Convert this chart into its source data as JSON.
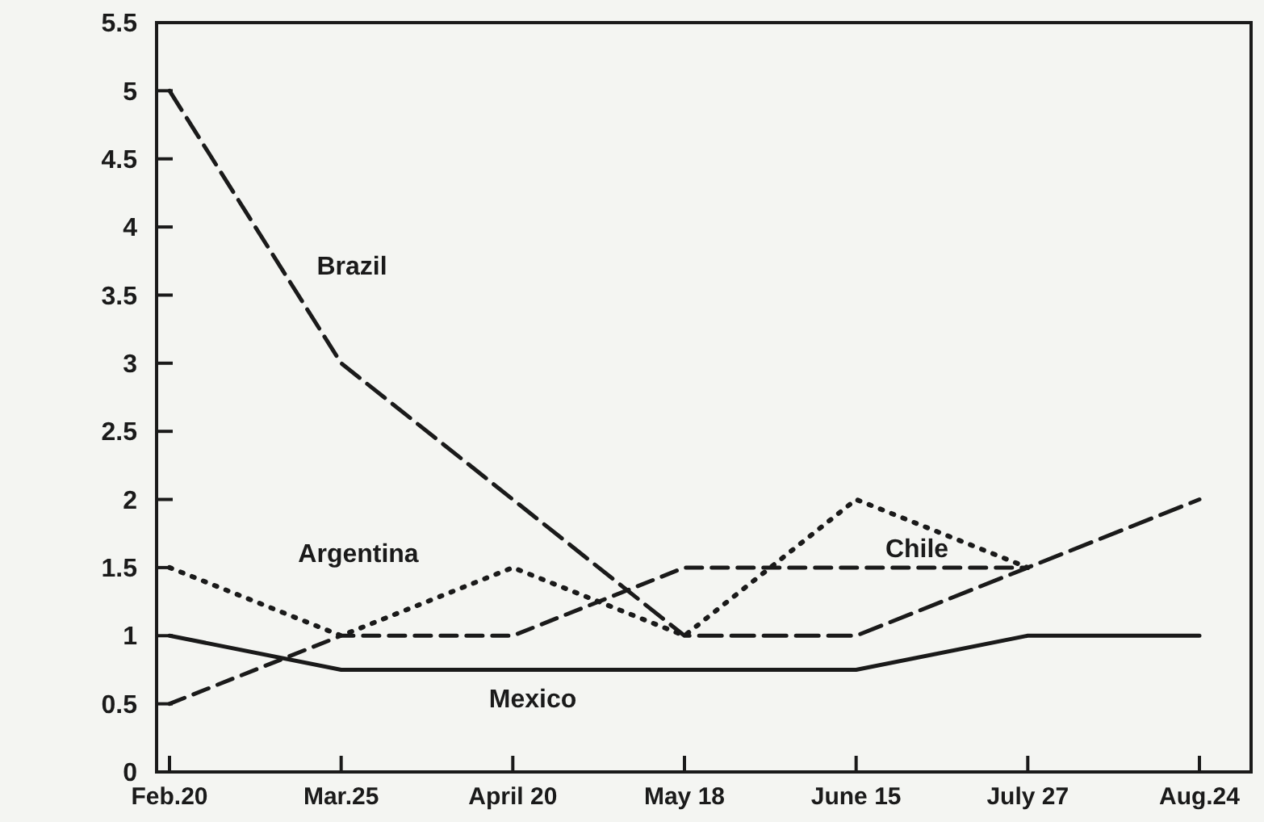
{
  "chart_data": {
    "type": "line",
    "categories": [
      "Feb.20",
      "Mar.25",
      "April 20",
      "May 18",
      "June 15",
      "July 27",
      "Aug.24"
    ],
    "series": [
      {
        "name": "Brazil",
        "color": "#1a1a1a",
        "line_style": "dashed",
        "values": [
          5,
          3,
          2,
          1,
          1,
          1.5,
          2
        ]
      },
      {
        "name": "Argentina",
        "color": "#1a1a1a",
        "line_style": "dotted",
        "values": [
          1.5,
          1,
          1.5,
          1,
          2,
          1.5,
          null
        ]
      },
      {
        "name": "Chile",
        "color": "#1a1a1a",
        "line_style": "dashed",
        "values": [
          0.5,
          1,
          1,
          1.5,
          1.5,
          1.5,
          null
        ]
      },
      {
        "name": "Mexico",
        "color": "#1a1a1a",
        "line_style": "solid",
        "values": [
          1,
          0.75,
          0.75,
          0.75,
          0.75,
          1,
          1
        ]
      }
    ],
    "ylim": [
      0,
      5.5
    ],
    "yticks": [
      0,
      0.5,
      1,
      {
        "value": 1.5,
        "label": "1.5"
      },
      2,
      {
        "value": 2.5,
        "label": "2.5"
      },
      3,
      {
        "value": 3.5,
        "label": "3.5"
      },
      4,
      {
        "value": 4.5,
        "label": "4.5"
      },
      5,
      {
        "value": 5.5,
        "label": "5.5"
      }
    ],
    "grid": false,
    "legend": false,
    "marker": "none"
  }
}
